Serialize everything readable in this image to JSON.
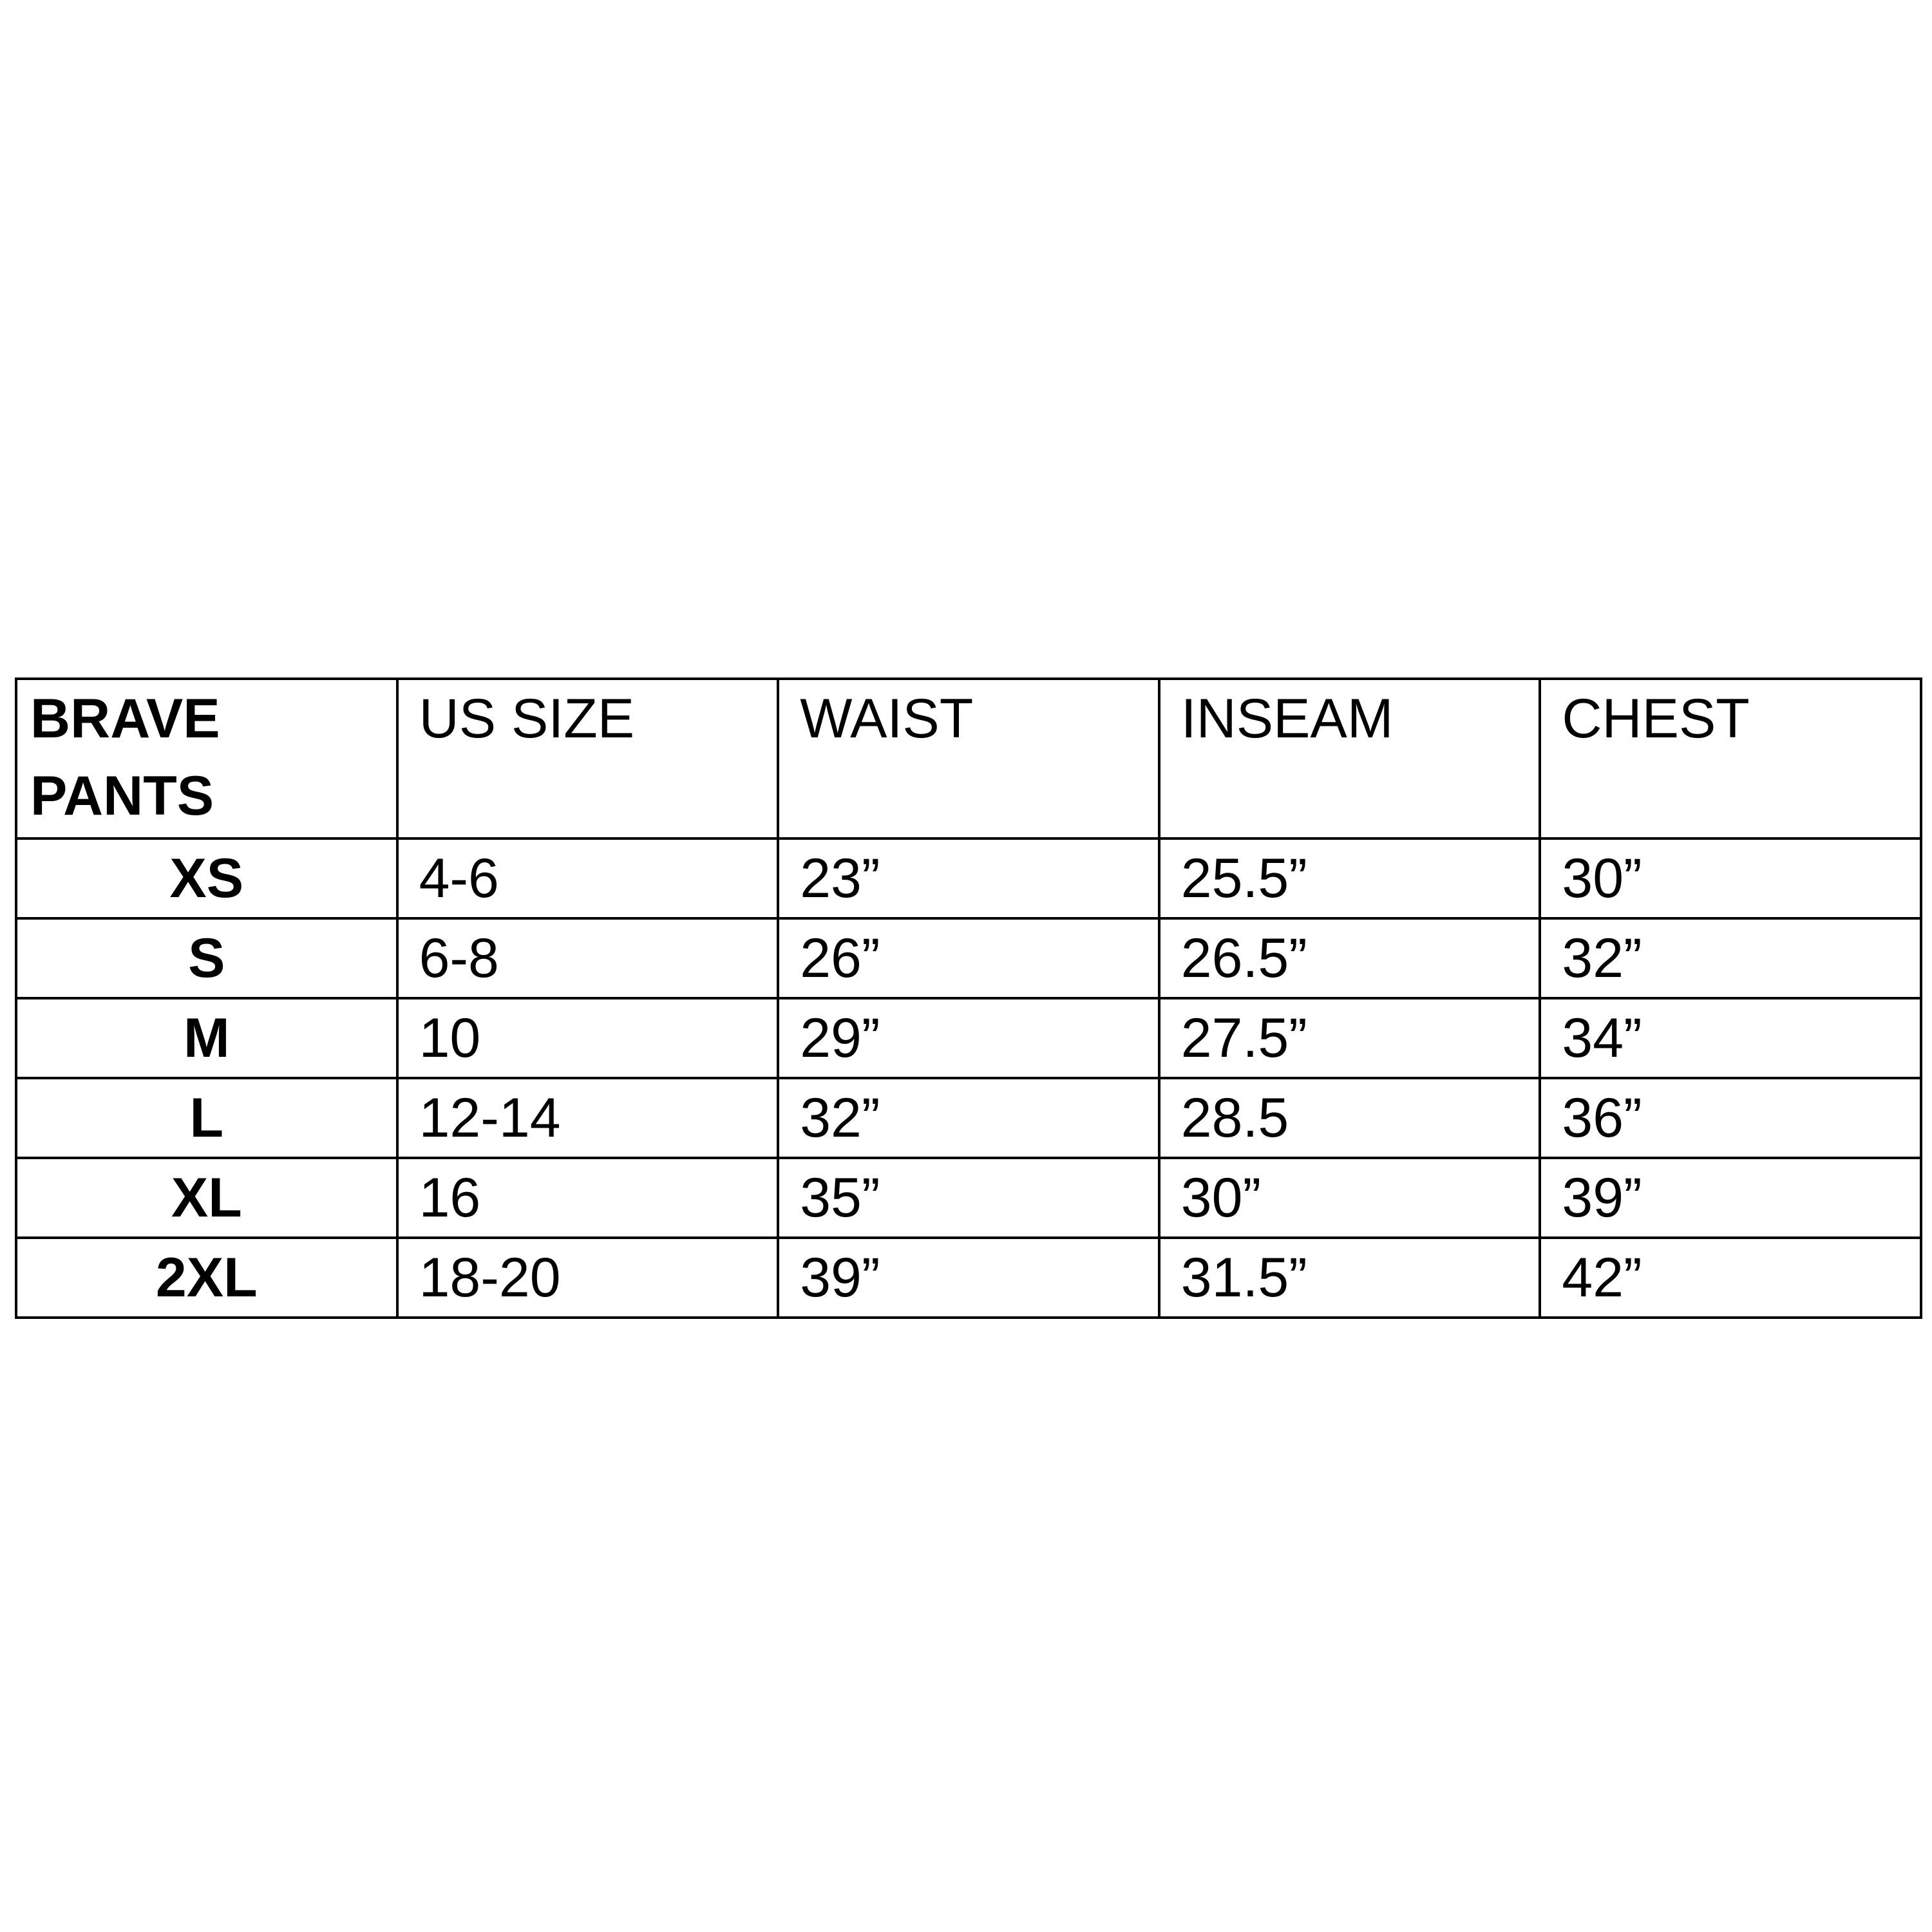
{
  "table": {
    "headers": [
      "BRAVE PANTS",
      "US SIZE",
      "WAIST",
      "INSEAM",
      "CHEST"
    ],
    "rows": [
      [
        "XS",
        "4-6",
        "23”",
        "25.5”",
        "30”"
      ],
      [
        "S",
        "6-8",
        "26”",
        "26.5”",
        "32”"
      ],
      [
        "M",
        "10",
        "29”",
        "27.5”",
        "34”"
      ],
      [
        "L",
        "12-14",
        "32”",
        "28.5",
        "36”"
      ],
      [
        "XL",
        "16",
        "35”",
        "30”",
        "39”"
      ],
      [
        "2XL",
        "18-20",
        "39”",
        "31.5”",
        "42”"
      ]
    ]
  }
}
